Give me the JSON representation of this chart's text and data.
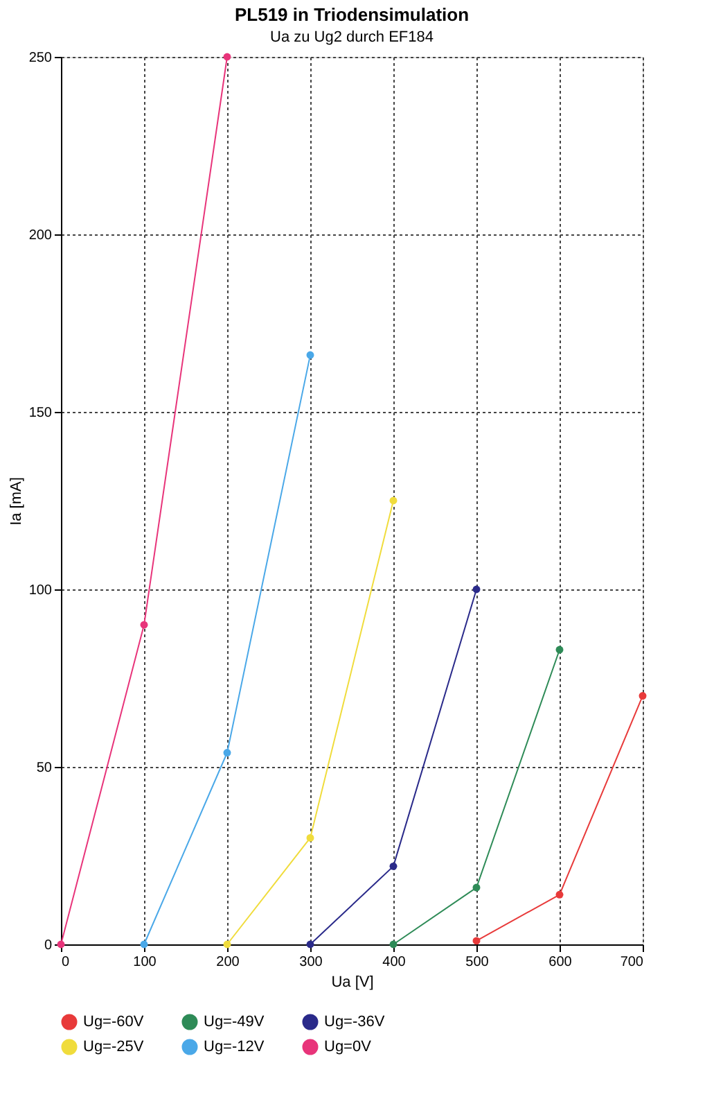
{
  "chart_data": {
    "type": "line",
    "title": "PL519 in Triodensimulation",
    "subtitle": "Ua zu Ug2 durch EF184",
    "xlabel": "Ua [V]",
    "ylabel": "Ia [mA]",
    "xlim": [
      0,
      700
    ],
    "xticks": [
      0,
      100,
      200,
      300,
      400,
      500,
      600,
      700
    ],
    "ylim": [
      0,
      250
    ],
    "yticks": [
      0,
      50,
      100,
      150,
      200,
      250
    ],
    "grid": true,
    "legend": "bottom",
    "marker": "circle",
    "line_style": "solid",
    "series": [
      {
        "name": "Ug=-60V",
        "color": "#e83a3a",
        "x": [
          500,
          600,
          700
        ],
        "values": [
          1,
          14,
          70
        ]
      },
      {
        "name": "Ug=-49V",
        "color": "#2e8b57",
        "x": [
          400,
          500,
          600
        ],
        "values": [
          0,
          16,
          83
        ]
      },
      {
        "name": "Ug=-36V",
        "color": "#2a2a8a",
        "x": [
          300,
          400,
          500
        ],
        "values": [
          0,
          22,
          100
        ]
      },
      {
        "name": "Ug=-25V",
        "color": "#f0dc3c",
        "x": [
          200,
          300,
          400
        ],
        "values": [
          0,
          30,
          125
        ]
      },
      {
        "name": "Ug=-12V",
        "color": "#4aa8e8",
        "x": [
          100,
          200,
          300
        ],
        "values": [
          0,
          54,
          166
        ]
      },
      {
        "name": "Ug=0V",
        "color": "#e8347a",
        "x": [
          0,
          100,
          200
        ],
        "values": [
          0,
          90,
          250
        ]
      }
    ]
  }
}
